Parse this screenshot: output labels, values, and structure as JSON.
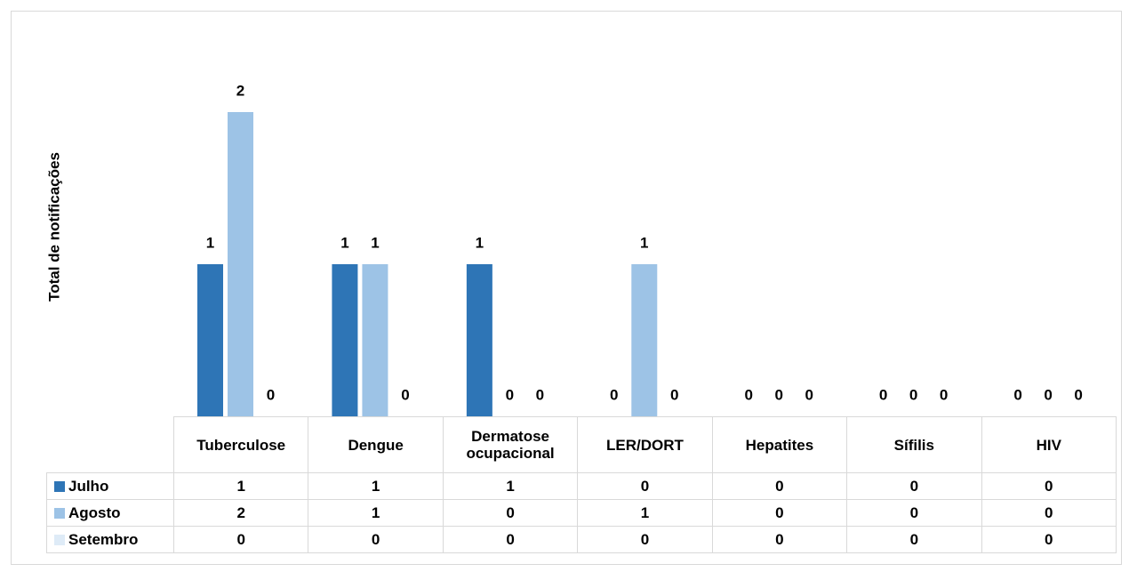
{
  "chart_data": {
    "type": "bar",
    "y_label": "Total de notificações",
    "categories": [
      "Tuberculose",
      "Dengue",
      "Dermatose ocupacional",
      "LER/DORT",
      "Hepatites",
      "Sífilis",
      "HIV"
    ],
    "series": [
      {
        "name": "Julho",
        "color": "#2e75b6",
        "values": [
          1,
          1,
          1,
          0,
          0,
          0,
          0
        ]
      },
      {
        "name": "Agosto",
        "color": "#9dc3e6",
        "values": [
          2,
          1,
          0,
          1,
          0,
          0,
          0
        ]
      },
      {
        "name": "Setembro",
        "color": "#deebf7",
        "values": [
          0,
          0,
          0,
          0,
          0,
          0,
          0
        ]
      }
    ],
    "ylim": [
      0,
      2
    ]
  }
}
